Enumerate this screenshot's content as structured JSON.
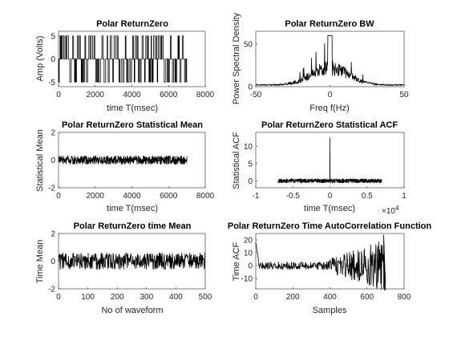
{
  "chart_data": [
    {
      "type": "line",
      "title": "Polar ReturnZero",
      "xlabel": "time T(msec)",
      "ylabel": "Amp (Volts)",
      "xlim": [
        0,
        8000
      ],
      "ylim": [
        -6,
        6
      ],
      "xticks": [
        0,
        2000,
        4000,
        6000,
        8000
      ],
      "yticks": [
        -5,
        0,
        5
      ],
      "x_range": [
        0,
        7000
      ],
      "levels": [
        -5,
        0,
        5
      ],
      "grid": false
    },
    {
      "type": "line",
      "title": "Polar ReturnZero BW",
      "xlabel": "Freq f(Hz)",
      "ylabel": "Power Spectral Density",
      "xlim": [
        -50,
        50
      ],
      "ylim": [
        0,
        65
      ],
      "xticks": [
        -50,
        0,
        50
      ],
      "yticks": [
        0,
        50
      ],
      "peak": 60,
      "grid": false
    },
    {
      "type": "line",
      "title": "Polar ReturnZero Statistical Mean",
      "xlabel": "time T(msec)",
      "ylabel": "Statistical Mean",
      "xlim": [
        0,
        8000
      ],
      "ylim": [
        -2,
        2
      ],
      "xticks": [
        0,
        2000,
        4000,
        6000,
        8000
      ],
      "yticks": [
        -2,
        0,
        2
      ],
      "x_range": [
        0,
        7000
      ],
      "amplitude": 0.3,
      "grid": false
    },
    {
      "type": "line",
      "title": "Polar ReturnZero Statistical ACF",
      "xlabel": "time T(msec)",
      "ylabel": "Statistical ACF",
      "xlim": [
        -10000,
        10000
      ],
      "ylim": [
        -2,
        14
      ],
      "xticks": [
        -10000,
        -5000,
        0,
        5000,
        10000
      ],
      "xtick_labels": [
        "-1",
        "-0.5",
        "0",
        "0.5",
        "1"
      ],
      "x_exponent": "×10",
      "x_exponent_power": "4",
      "yticks": [
        0,
        5,
        10
      ],
      "x_range": [
        -7000,
        7000
      ],
      "peak": 12.5,
      "grid": false
    },
    {
      "type": "line",
      "title": "Polar ReturnZero time Mean",
      "xlabel": "No of waveform",
      "ylabel": "Time Mean",
      "xlim": [
        0,
        500
      ],
      "ylim": [
        -2,
        2
      ],
      "xticks": [
        0,
        100,
        200,
        300,
        400,
        500
      ],
      "yticks": [
        -2,
        0,
        2
      ],
      "x_range": [
        0,
        500
      ],
      "amplitude": 0.6,
      "grid": false
    },
    {
      "type": "line",
      "title": "Polar ReturnZero Time AutoCorrelation Function",
      "xlabel": "Samples",
      "ylabel": "Time ACF",
      "xlim": [
        0,
        800
      ],
      "ylim": [
        -18,
        25
      ],
      "xticks": [
        0,
        200,
        400,
        600,
        800
      ],
      "yticks": [
        -10,
        0,
        10,
        20
      ],
      "x_range": [
        0,
        700
      ],
      "start_value": 18,
      "spike_x": 690,
      "spike_range": [
        -18,
        24
      ],
      "grid": false
    }
  ]
}
